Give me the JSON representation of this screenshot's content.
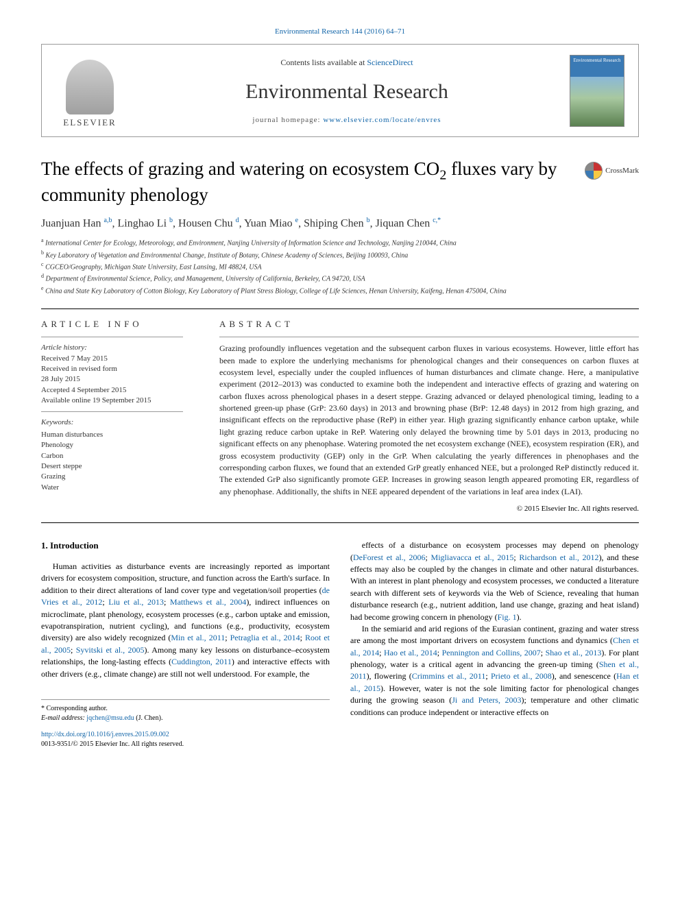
{
  "top_citation": "Environmental Research 144 (2016) 64–71",
  "header": {
    "contents_prefix": "Contents lists available at ",
    "contents_link": "ScienceDirect",
    "journal_name": "Environmental Research",
    "homepage_prefix": "journal homepage: ",
    "homepage_url": "www.elsevier.com/locate/envres",
    "publisher_name": "ELSEVIER",
    "cover_label": "Environmental Research"
  },
  "title": {
    "main": "The effects of grazing and watering on ecosystem CO",
    "sub": "2",
    "tail": " fluxes vary by community phenology"
  },
  "crossmark_label": "CrossMark",
  "authors": "Juanjuan Han a,b, Linghao Li b, Housen Chu d, Yuan Miao e, Shiping Chen b, Jiquan Chen c,*",
  "affiliations": [
    "a International Center for Ecology, Meteorology, and Environment, Nanjing University of Information Science and Technology, Nanjing 210044, China",
    "b Key Laboratory of Vegetation and Environmental Change, Institute of Botany, Chinese Academy of Sciences, Beijing 100093, China",
    "c CGCEO/Geography, Michigan State University, East Lansing, MI 48824, USA",
    "d Department of Environmental Science, Policy, and Management, University of California, Berkeley, CA 94720, USA",
    "e China and State Key Laboratory of Cotton Biology, Key Laboratory of Plant Stress Biology, College of Life Sciences, Henan University, Kaifeng, Henan 475004, China"
  ],
  "article_info": {
    "header": "ARTICLE INFO",
    "history_label": "Article history:",
    "received": "Received 7 May 2015",
    "revised1": "Received in revised form",
    "revised2": "28 July 2015",
    "accepted": "Accepted 4 September 2015",
    "online": "Available online 19 September 2015",
    "keywords_label": "Keywords:",
    "keywords": [
      "Human disturbances",
      "Phenology",
      "Carbon",
      "Desert steppe",
      "Grazing",
      "Water"
    ]
  },
  "abstract": {
    "header": "ABSTRACT",
    "text": "Grazing profoundly influences vegetation and the subsequent carbon fluxes in various ecosystems. However, little effort has been made to explore the underlying mechanisms for phenological changes and their consequences on carbon fluxes at ecosystem level, especially under the coupled influences of human disturbances and climate change. Here, a manipulative experiment (2012–2013) was conducted to examine both the independent and interactive effects of grazing and watering on carbon fluxes across phenological phases in a desert steppe. Grazing advanced or delayed phenological timing, leading to a shortened green-up phase (GrP: 23.60 days) in 2013 and browning phase (BrP: 12.48 days) in 2012 from high grazing, and insignificant effects on the reproductive phase (ReP) in either year. High grazing significantly enhance carbon uptake, while light grazing reduce carbon uptake in ReP. Watering only delayed the browning time by 5.01 days in 2013, producing no significant effects on any phenophase. Watering promoted the net ecosystem exchange (NEE), ecosystem respiration (ER), and gross ecosystem productivity (GEP) only in the GrP. When calculating the yearly differences in phenophases and the corresponding carbon fluxes, we found that an extended GrP greatly enhanced NEE, but a prolonged ReP distinctly reduced it. The extended GrP also significantly promote GEP. Increases in growing season length appeared promoting ER, regardless of any phenophase. Additionally, the shifts in NEE appeared dependent of the variations in leaf area index (LAI).",
    "copyright": "© 2015 Elsevier Inc. All rights reserved."
  },
  "intro": {
    "heading": "1. Introduction",
    "col1_html": "Human activities as disturbance events are increasingly reported as important drivers for ecosystem composition, structure, and function across the Earth's surface. In addition to their direct alterations of land cover type and vegetation/soil properties (<span class='ref-link'>de Vries et al., 2012</span>; <span class='ref-link'>Liu et al., 2013</span>; <span class='ref-link'>Matthews et al., 2004</span>), indirect influences on microclimate, plant phenology, ecosystem processes (e.g., carbon uptake and emission, evapotranspiration, nutrient cycling), and functions (e.g., productivity, ecosystem diversity) are also widely recognized (<span class='ref-link'>Min et al., 2011</span>; <span class='ref-link'>Petraglia et al., 2014</span>; <span class='ref-link'>Root et al., 2005</span>; <span class='ref-link'>Syvitski et al., 2005</span>). Among many key lessons on disturbance–ecosystem relationships, the long-lasting effects (<span class='ref-link'>Cuddington, 2011</span>) and interactive effects with other drivers (e.g., climate change) are still not well understood. For example, the",
    "col2_html": "effects of a disturbance on ecosystem processes may depend on phenology (<span class='ref-link'>DeForest et al., 2006</span>; <span class='ref-link'>Migliavacca et al., 2015</span>; <span class='ref-link'>Richardson et al., 2012</span>), and these effects may also be coupled by the changes in climate and other natural disturbances. With an interest in plant phenology and ecosystem processes, we conducted a literature search with different sets of keywords via the Web of Science, revealing that human disturbance research (e.g., nutrient addition, land use change, grazing and heat island) had become growing concern in phenology (<span class='ref-link'>Fig. 1</span>).",
    "col2_p2_html": "In the semiarid and arid regions of the Eurasian continent, grazing and water stress are among the most important drivers on ecosystem functions and dynamics (<span class='ref-link'>Chen et al., 2014</span>; <span class='ref-link'>Hao et al., 2014</span>; <span class='ref-link'>Pennington and Collins, 2007</span>; <span class='ref-link'>Shao et al., 2013</span>). For plant phenology, water is a critical agent in advancing the green-up timing (<span class='ref-link'>Shen et al., 2011</span>), flowering (<span class='ref-link'>Crimmins et al., 2011</span>; <span class='ref-link'>Prieto et al., 2008</span>), and senescence (<span class='ref-link'>Han et al., 2015</span>). However, water is not the sole limiting factor for phenological changes during the growing season (<span class='ref-link'>Ji and Peters, 2003</span>); temperature and other climatic conditions can produce independent or interactive effects on"
  },
  "footer": {
    "corr_label": "* Corresponding author.",
    "email_label": "E-mail address: ",
    "email": "jqchen@msu.edu",
    "email_who": " (J. Chen).",
    "doi_url": "http://dx.doi.org/10.1016/j.envres.2015.09.002",
    "issn_line": "0013-9351/© 2015 Elsevier Inc. All rights reserved."
  },
  "colors": {
    "link": "#1064a8",
    "text": "#000000",
    "muted": "#333333",
    "rule": "#999999"
  }
}
